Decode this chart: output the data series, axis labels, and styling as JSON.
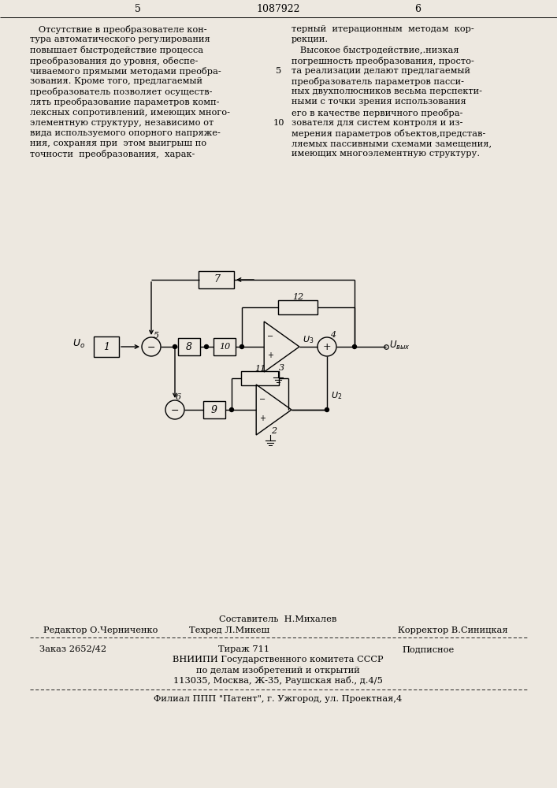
{
  "page_number_left": "5",
  "patent_number": "1087922",
  "page_number_right": "6",
  "text_left": "   Отсутствие в преобразователе кон-\nтура автоматического регулирования\nповышает быстродействие процесса\nпреобразования до уровня, обеспе-\nчиваемого прямыми методами преобра-\nзования. Кроме того, предлагаемый\nпреобразователь позволяет осуществ-\nлять преобразование параметров комп-\nлексных сопротивлений, имеющих много-\nэлементную структуру, независимо от\nвида используемого опорного напряже-\nния, сохраняя при  этом выигрыш по\nточности  преобразования,  харак-",
  "text_right": "терный  итерационным  методам  кор-\nрекции.\n   Высокое быстродействие,.низкая\nпогрешность преобразования, просто-\nта реализации делают предлагаемый\nпреобразователь параметров пасси-\nных двухполюсников весьма перспекти-\nными с точки зрения использования\nего в качестве первичного преобра-\nзователя для систем контроля и из-\nмерения параметров объектов,представ-\nляемых пассивными схемами замещения,\nимеющих многоэлементную структуру.",
  "footer_line1_sestavitel": "Составитель  Н.Михалев",
  "footer_line1_left": "Редактор О.Черниченко",
  "footer_line1_center": "Техред Л.Микеш",
  "footer_line1_right": "Корректор В.Синицкая",
  "footer_line2_col1": "Заказ 2652/42",
  "footer_line2_col2": "Тираж 711",
  "footer_line2_col3": "Подписное",
  "footer_line3": "ВНИИПИ Государственного комитета СССР\nпо делам изобретений и открытий\n113035, Москва, Ж-35, Раушская наб., д.4/5",
  "footer_line4": "Филиал ППП \"Патент\", г. Ужгород, ул. Проектная,4",
  "bg_color": "#ede8e0"
}
